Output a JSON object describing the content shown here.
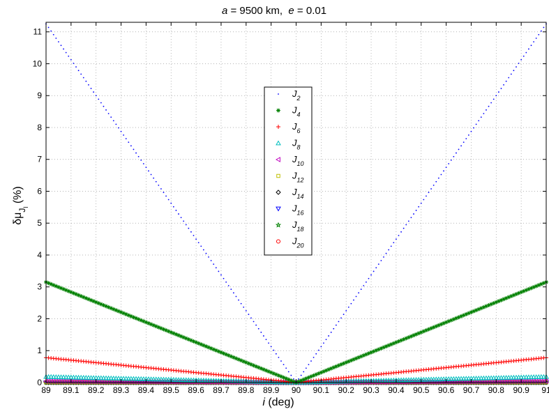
{
  "chart_data": {
    "type": "scatter",
    "title_parts": {
      "a_sym": "a",
      "a_text": " = 9500 km,",
      "e_sym": "e",
      "e_text": " = 0.01"
    },
    "xlabel": {
      "sym": "i",
      "text": " (deg)"
    },
    "ylabel": {
      "main": "δμ",
      "sub1": "J",
      "sub2": "l",
      "unit": " (%)"
    },
    "xlim": [
      89,
      91
    ],
    "ylim": [
      0,
      11.3
    ],
    "xticks": [
      89,
      89.1,
      89.2,
      89.3,
      89.4,
      89.5,
      89.6,
      89.7,
      89.8,
      89.9,
      90,
      90.1,
      90.2,
      90.3,
      90.4,
      90.5,
      90.6,
      90.7,
      90.8,
      90.9,
      91
    ],
    "yticks": [
      0,
      1,
      2,
      3,
      4,
      5,
      6,
      7,
      8,
      9,
      10,
      11
    ],
    "grid": true,
    "legend_position": "center-top",
    "x_center": 90,
    "series": [
      {
        "name": "J",
        "sub": "2",
        "marker": "dot",
        "color": "#0000ff",
        "edge_value": 11.25
      },
      {
        "name": "J",
        "sub": "4",
        "marker": "asterisk",
        "color": "#008000",
        "edge_value": 3.15
      },
      {
        "name": "J",
        "sub": "6",
        "marker": "plus",
        "color": "#ff0000",
        "edge_value": 0.78
      },
      {
        "name": "J",
        "sub": "8",
        "marker": "triangle-up",
        "color": "#00bfbf",
        "edge_value": 0.18
      },
      {
        "name": "J",
        "sub": "10",
        "marker": "triangle-left",
        "color": "#bf00bf",
        "edge_value": 0.04
      },
      {
        "name": "J",
        "sub": "12",
        "marker": "square",
        "color": "#bfbf00",
        "edge_value": 0.01
      },
      {
        "name": "J",
        "sub": "14",
        "marker": "diamond",
        "color": "#000000",
        "edge_value": 0.004
      },
      {
        "name": "J",
        "sub": "16",
        "marker": "triangle-down",
        "color": "#0000ff",
        "edge_value": 0.002
      },
      {
        "name": "J",
        "sub": "18",
        "marker": "pentagram",
        "color": "#008000",
        "edge_value": 0.001
      },
      {
        "name": "J",
        "sub": "20",
        "marker": "circle",
        "color": "#ff0000",
        "edge_value": 0.0005
      }
    ]
  }
}
